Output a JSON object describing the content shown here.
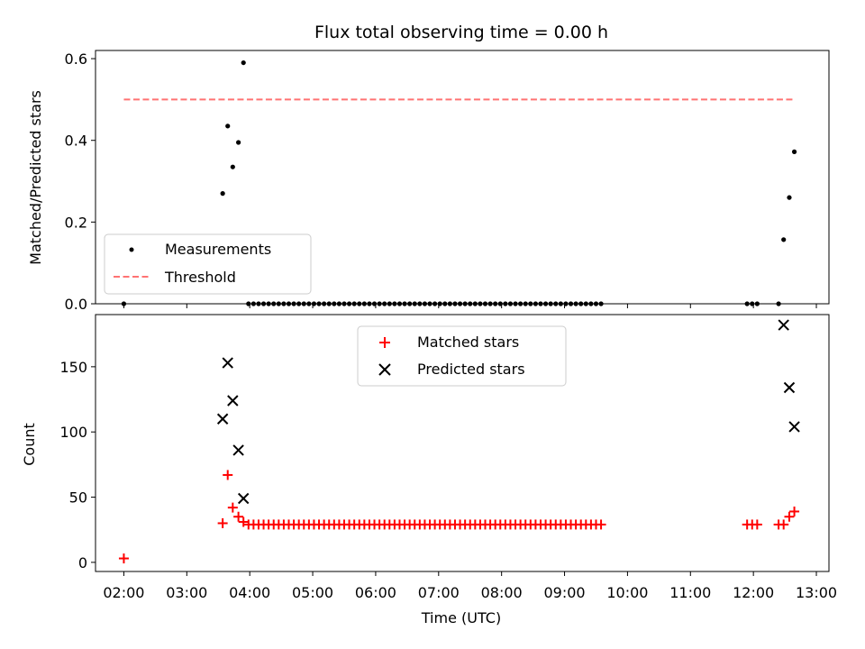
{
  "chart_data": [
    {
      "type": "scatter",
      "panel": "top",
      "title": "Flux total observing time = 0.00 h",
      "xlabel": "",
      "ylabel": "Matched/Predicted stars",
      "ylim": [
        0,
        0.62
      ],
      "xlim_hours": [
        1.55,
        13.2
      ],
      "yticks": [
        0.0,
        0.2,
        0.4,
        0.6
      ],
      "ytick_labels": [
        "0.0",
        "0.2",
        "0.4",
        "0.6"
      ],
      "series": [
        {
          "name": "Measurements",
          "color": "#000000",
          "marker": "dot",
          "points": [
            [
              2.0,
              0.0
            ],
            [
              3.57,
              0.27
            ],
            [
              3.65,
              0.435
            ],
            [
              3.73,
              0.335
            ],
            [
              3.82,
              0.395
            ],
            [
              3.9,
              0.59
            ],
            [
              3.98,
              0.0
            ],
            [
              4.06,
              0.0
            ],
            [
              4.14,
              0.0
            ],
            [
              4.22,
              0.0
            ],
            [
              4.3,
              0.0
            ],
            [
              4.38,
              0.0
            ],
            [
              4.46,
              0.0
            ],
            [
              4.54,
              0.0
            ],
            [
              4.62,
              0.0
            ],
            [
              4.7,
              0.0
            ],
            [
              4.78,
              0.0
            ],
            [
              4.86,
              0.0
            ],
            [
              4.94,
              0.0
            ],
            [
              5.02,
              0.0
            ],
            [
              5.1,
              0.0
            ],
            [
              5.18,
              0.0
            ],
            [
              5.26,
              0.0
            ],
            [
              5.34,
              0.0
            ],
            [
              5.42,
              0.0
            ],
            [
              5.5,
              0.0
            ],
            [
              5.58,
              0.0
            ],
            [
              5.66,
              0.0
            ],
            [
              5.74,
              0.0
            ],
            [
              5.82,
              0.0
            ],
            [
              5.9,
              0.0
            ],
            [
              5.98,
              0.0
            ],
            [
              6.06,
              0.0
            ],
            [
              6.14,
              0.0
            ],
            [
              6.22,
              0.0
            ],
            [
              6.3,
              0.0
            ],
            [
              6.38,
              0.0
            ],
            [
              6.46,
              0.0
            ],
            [
              6.54,
              0.0
            ],
            [
              6.62,
              0.0
            ],
            [
              6.7,
              0.0
            ],
            [
              6.78,
              0.0
            ],
            [
              6.86,
              0.0
            ],
            [
              6.94,
              0.0
            ],
            [
              7.02,
              0.0
            ],
            [
              7.1,
              0.0
            ],
            [
              7.18,
              0.0
            ],
            [
              7.26,
              0.0
            ],
            [
              7.34,
              0.0
            ],
            [
              7.42,
              0.0
            ],
            [
              7.5,
              0.0
            ],
            [
              7.58,
              0.0
            ],
            [
              7.66,
              0.0
            ],
            [
              7.74,
              0.0
            ],
            [
              7.82,
              0.0
            ],
            [
              7.9,
              0.0
            ],
            [
              7.98,
              0.0
            ],
            [
              8.06,
              0.0
            ],
            [
              8.14,
              0.0
            ],
            [
              8.22,
              0.0
            ],
            [
              8.3,
              0.0
            ],
            [
              8.38,
              0.0
            ],
            [
              8.46,
              0.0
            ],
            [
              8.54,
              0.0
            ],
            [
              8.62,
              0.0
            ],
            [
              8.7,
              0.0
            ],
            [
              8.78,
              0.0
            ],
            [
              8.86,
              0.0
            ],
            [
              8.94,
              0.0
            ],
            [
              9.02,
              0.0
            ],
            [
              9.1,
              0.0
            ],
            [
              9.18,
              0.0
            ],
            [
              9.26,
              0.0
            ],
            [
              9.34,
              0.0
            ],
            [
              9.42,
              0.0
            ],
            [
              9.5,
              0.0
            ],
            [
              9.58,
              0.0
            ],
            [
              11.9,
              0.0
            ],
            [
              11.98,
              0.0
            ],
            [
              12.06,
              0.0
            ],
            [
              12.4,
              0.0
            ],
            [
              12.48,
              0.157
            ],
            [
              12.57,
              0.26
            ],
            [
              12.65,
              0.372
            ]
          ]
        },
        {
          "name": "Threshold",
          "color": "#ff7373",
          "style": "dashed-line",
          "x": [
            2.0,
            12.65
          ],
          "y": [
            0.5,
            0.5
          ]
        }
      ]
    },
    {
      "type": "scatter",
      "panel": "bottom",
      "title": "",
      "xlabel": "Time (UTC)",
      "ylabel": "Count",
      "ylim": [
        -7,
        190
      ],
      "xlim_hours": [
        1.55,
        13.2
      ],
      "yticks": [
        0,
        50,
        100,
        150
      ],
      "ytick_labels": [
        "0",
        "50",
        "100",
        "150"
      ],
      "xticks_hours": [
        2,
        3,
        4,
        5,
        6,
        7,
        8,
        9,
        10,
        11,
        12,
        13
      ],
      "xtick_labels": [
        "02:00",
        "03:00",
        "04:00",
        "05:00",
        "06:00",
        "07:00",
        "08:00",
        "09:00",
        "10:00",
        "11:00",
        "12:00",
        "13:00"
      ],
      "series": [
        {
          "name": "Matched stars",
          "color": "#ff0000",
          "marker": "plus",
          "points": [
            [
              2.0,
              3
            ],
            [
              3.57,
              30
            ],
            [
              3.65,
              67
            ],
            [
              3.73,
              42
            ],
            [
              3.82,
              35
            ],
            [
              3.9,
              31
            ],
            [
              3.98,
              29
            ],
            [
              4.06,
              29
            ],
            [
              4.14,
              29
            ],
            [
              4.22,
              29
            ],
            [
              4.3,
              29
            ],
            [
              4.38,
              29
            ],
            [
              4.46,
              29
            ],
            [
              4.54,
              29
            ],
            [
              4.62,
              29
            ],
            [
              4.7,
              29
            ],
            [
              4.78,
              29
            ],
            [
              4.86,
              29
            ],
            [
              4.94,
              29
            ],
            [
              5.02,
              29
            ],
            [
              5.1,
              29
            ],
            [
              5.18,
              29
            ],
            [
              5.26,
              29
            ],
            [
              5.34,
              29
            ],
            [
              5.42,
              29
            ],
            [
              5.5,
              29
            ],
            [
              5.58,
              29
            ],
            [
              5.66,
              29
            ],
            [
              5.74,
              29
            ],
            [
              5.82,
              29
            ],
            [
              5.9,
              29
            ],
            [
              5.98,
              29
            ],
            [
              6.06,
              29
            ],
            [
              6.14,
              29
            ],
            [
              6.22,
              29
            ],
            [
              6.3,
              29
            ],
            [
              6.38,
              29
            ],
            [
              6.46,
              29
            ],
            [
              6.54,
              29
            ],
            [
              6.62,
              29
            ],
            [
              6.7,
              29
            ],
            [
              6.78,
              29
            ],
            [
              6.86,
              29
            ],
            [
              6.94,
              29
            ],
            [
              7.02,
              29
            ],
            [
              7.1,
              29
            ],
            [
              7.18,
              29
            ],
            [
              7.26,
              29
            ],
            [
              7.34,
              29
            ],
            [
              7.42,
              29
            ],
            [
              7.5,
              29
            ],
            [
              7.58,
              29
            ],
            [
              7.66,
              29
            ],
            [
              7.74,
              29
            ],
            [
              7.82,
              29
            ],
            [
              7.9,
              29
            ],
            [
              7.98,
              29
            ],
            [
              8.06,
              29
            ],
            [
              8.14,
              29
            ],
            [
              8.22,
              29
            ],
            [
              8.3,
              29
            ],
            [
              8.38,
              29
            ],
            [
              8.46,
              29
            ],
            [
              8.54,
              29
            ],
            [
              8.62,
              29
            ],
            [
              8.7,
              29
            ],
            [
              8.78,
              29
            ],
            [
              8.86,
              29
            ],
            [
              8.94,
              29
            ],
            [
              9.02,
              29
            ],
            [
              9.1,
              29
            ],
            [
              9.18,
              29
            ],
            [
              9.26,
              29
            ],
            [
              9.34,
              29
            ],
            [
              9.42,
              29
            ],
            [
              9.5,
              29
            ],
            [
              9.58,
              29
            ],
            [
              11.9,
              29
            ],
            [
              11.98,
              29
            ],
            [
              12.06,
              29
            ],
            [
              12.4,
              29
            ],
            [
              12.48,
              29
            ],
            [
              12.57,
              35
            ],
            [
              12.65,
              39
            ]
          ]
        },
        {
          "name": "Predicted stars",
          "color": "#000000",
          "marker": "x",
          "points": [
            [
              3.57,
              110
            ],
            [
              3.65,
              153
            ],
            [
              3.73,
              124
            ],
            [
              3.82,
              86
            ],
            [
              3.9,
              49
            ],
            [
              12.48,
              182
            ],
            [
              12.57,
              134
            ],
            [
              12.65,
              104
            ]
          ]
        }
      ]
    }
  ]
}
